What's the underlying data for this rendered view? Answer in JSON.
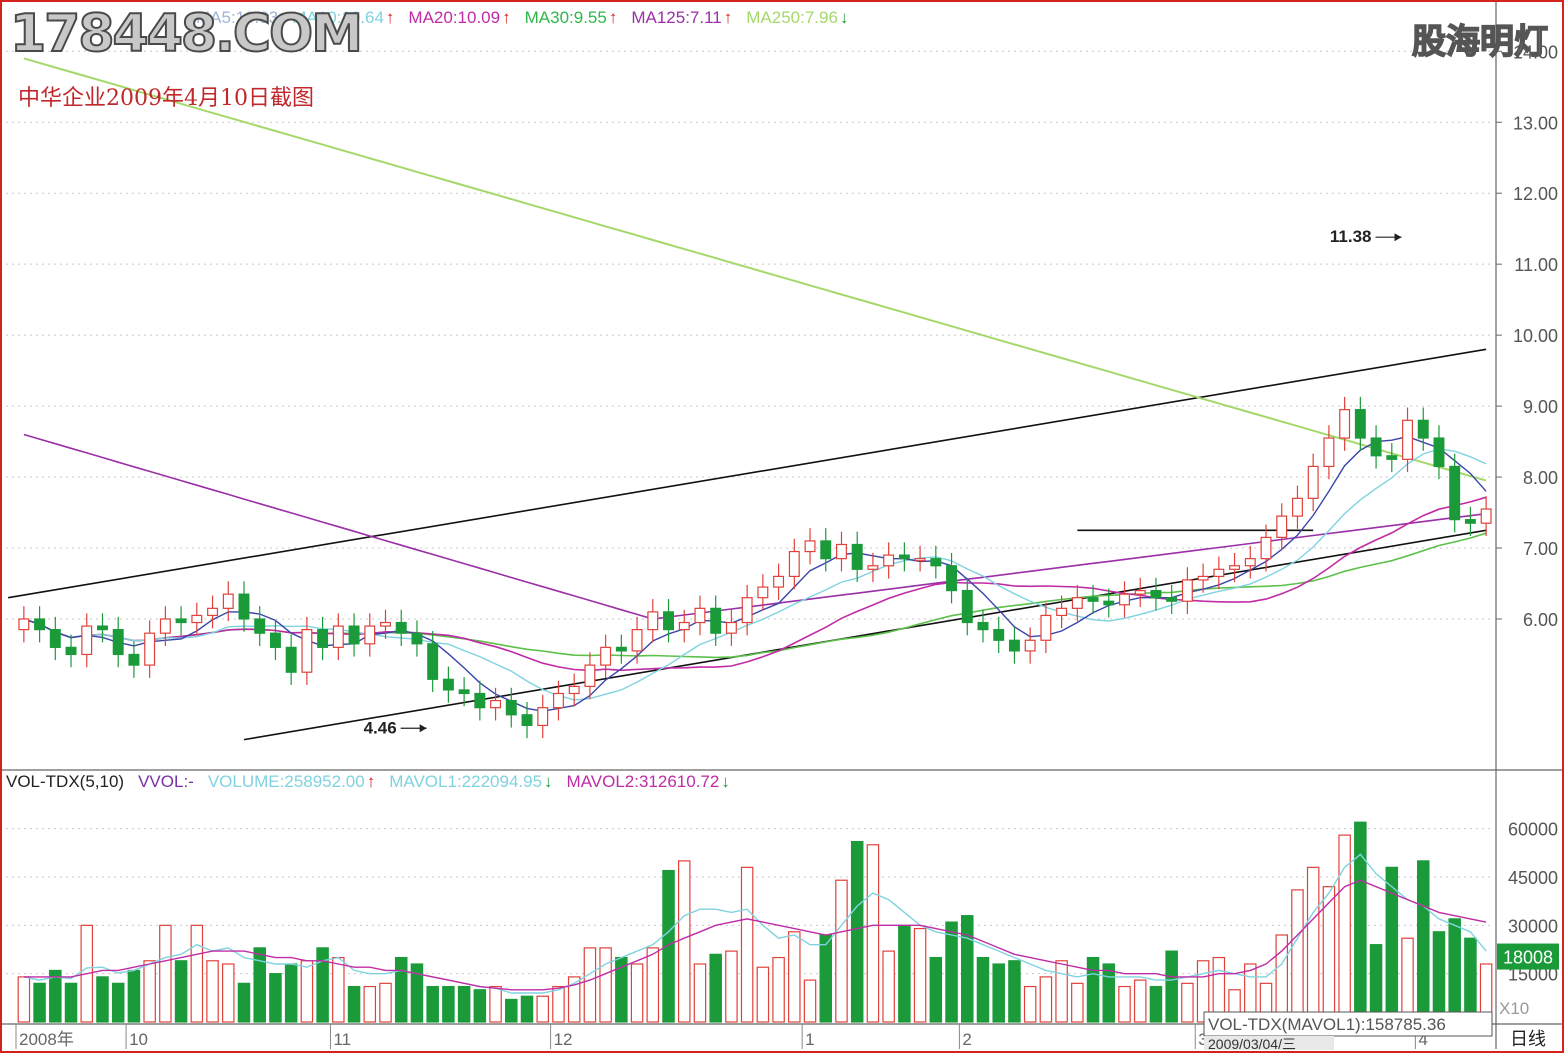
{
  "watermark": "178448.COM",
  "brand": "股海明灯",
  "caption": "中华企业2009年4月10日截图",
  "ma_legend": [
    {
      "label": "MA5:10.83",
      "color": "#9fb4d6",
      "arrow": ""
    },
    {
      "label": "MA10:10.64",
      "color": "#7fd3e0",
      "arrow": "↑"
    },
    {
      "label": "MA20:10.09",
      "color": "#c02ca6",
      "arrow": "↑"
    },
    {
      "label": "MA30:9.55",
      "color": "#2fb84a",
      "arrow": "↑"
    },
    {
      "label": "MA125:7.11",
      "color": "#9a2fa8",
      "arrow": "↑"
    },
    {
      "label": "MA250:7.96",
      "color": "#a5d86a",
      "arrow": "↓"
    }
  ],
  "vol_legend": [
    {
      "label": "VOL-TDX(5,10)",
      "color": "#222222",
      "arrow": ""
    },
    {
      "label": "VVOL:-",
      "color": "#7a2fa8",
      "arrow": ""
    },
    {
      "label": "VOLUME:258952.00",
      "color": "#7fd3e0",
      "arrow": "↑"
    },
    {
      "label": "MAVOL1:222094.95",
      "color": "#7fd3e0",
      "arrow": "↓"
    },
    {
      "label": "MAVOL2:312610.72",
      "color": "#c02ca6",
      "arrow": "↓"
    }
  ],
  "vol_status": "VOL-TDX(MAVOL1):158785.36",
  "vol_current": "18008",
  "vol_unit": "X10",
  "period_label": "日线",
  "date_label": "2009/03/04/三",
  "colors": {
    "up": "#e0413a",
    "down": "#1b9a3a",
    "frame": "#d4221c",
    "grid": "#c8c8c8",
    "ma5": "#3a45a8",
    "ma10": "#7fd3e0",
    "ma20": "#c02ca6",
    "ma30": "#5cc04a",
    "ma125": "#9a2fa8",
    "ma250": "#a5d86a"
  },
  "chart_data": [
    {
      "type": "candlestick",
      "y_ticks": [
        "14.00",
        "13.00",
        "12.00",
        "11.00",
        "10.00",
        "9.00",
        "8.00",
        "7.00",
        "6.00"
      ],
      "y_tick_values": [
        14,
        13,
        12,
        11,
        10,
        9,
        8,
        7,
        6
      ],
      "ylim": [
        3.9,
        14.3
      ],
      "x_ticks": [
        {
          "label": "2008年",
          "i": 0
        },
        {
          "label": "10",
          "i": 7
        },
        {
          "label": "11",
          "i": 20
        },
        {
          "label": "12",
          "i": 34
        },
        {
          "label": "1",
          "i": 50
        },
        {
          "label": "2",
          "i": 60
        },
        {
          "label": "3",
          "i": 75
        },
        {
          "label": "4",
          "i": 89
        }
      ],
      "n": 94,
      "close": [
        6.0,
        5.85,
        5.6,
        5.5,
        5.9,
        5.85,
        5.5,
        5.35,
        5.8,
        6.0,
        5.95,
        6.05,
        6.15,
        6.35,
        6.0,
        5.8,
        5.6,
        5.25,
        5.85,
        5.6,
        5.9,
        5.65,
        5.9,
        5.95,
        5.8,
        5.65,
        5.15,
        5.0,
        4.95,
        4.75,
        4.85,
        4.65,
        4.5,
        4.75,
        4.95,
        5.05,
        5.35,
        5.6,
        5.55,
        5.85,
        6.1,
        5.85,
        5.95,
        6.15,
        5.8,
        5.95,
        6.3,
        6.45,
        6.6,
        6.95,
        7.1,
        6.85,
        7.05,
        6.7,
        6.75,
        6.9,
        6.85,
        6.85,
        6.75,
        6.4,
        5.95,
        5.85,
        5.7,
        5.55,
        5.7,
        6.05,
        6.15,
        6.3,
        6.25,
        6.2,
        6.35,
        6.4,
        6.3,
        6.25,
        6.55,
        6.6,
        6.7,
        6.75,
        6.85,
        7.15,
        7.45,
        7.7,
        8.15,
        8.55,
        8.95,
        8.55,
        8.3,
        8.25,
        8.8,
        8.55,
        8.15,
        7.4,
        7.35,
        7.55
      ],
      "open": [
        5.85,
        6.0,
        5.85,
        5.6,
        5.5,
        5.9,
        5.85,
        5.5,
        5.35,
        5.8,
        6.0,
        5.95,
        6.05,
        6.15,
        6.35,
        6.0,
        5.8,
        5.6,
        5.25,
        5.85,
        5.6,
        5.9,
        5.65,
        5.9,
        5.95,
        5.8,
        5.65,
        5.15,
        5.0,
        4.95,
        4.75,
        4.85,
        4.65,
        4.5,
        4.75,
        4.95,
        5.05,
        5.35,
        5.6,
        5.55,
        5.85,
        6.1,
        5.85,
        5.95,
        6.15,
        5.8,
        5.95,
        6.3,
        6.45,
        6.6,
        6.95,
        7.1,
        6.85,
        7.05,
        6.7,
        6.75,
        6.9,
        6.85,
        6.85,
        6.75,
        6.4,
        5.95,
        5.85,
        5.7,
        5.55,
        5.7,
        6.05,
        6.15,
        6.3,
        6.25,
        6.2,
        6.35,
        6.4,
        6.3,
        6.25,
        6.55,
        6.6,
        6.7,
        6.75,
        6.85,
        7.15,
        7.45,
        7.7,
        8.15,
        8.55,
        8.95,
        8.55,
        8.3,
        8.25,
        8.8,
        8.55,
        8.15,
        7.4,
        7.35
      ],
      "price_notes": [
        {
          "text": "11.38",
          "price": 11.38,
          "i": 88
        },
        {
          "text": "4.46",
          "price": 4.46,
          "i": 26
        }
      ]
    },
    {
      "type": "bar",
      "y_ticks": [
        "60000",
        "45000",
        "30000",
        "15000"
      ],
      "y_tick_values": [
        60000,
        45000,
        30000,
        15000
      ],
      "ylim": [
        0,
        72000
      ],
      "volume": [
        14000,
        12000,
        16000,
        12000,
        30000,
        14000,
        12000,
        16000,
        19000,
        30000,
        19000,
        30000,
        19000,
        18000,
        12000,
        23000,
        15000,
        18000,
        19000,
        23000,
        20000,
        11000,
        11000,
        12000,
        20000,
        18000,
        11000,
        11000,
        11000,
        10000,
        11000,
        7000,
        8000,
        8000,
        11000,
        14000,
        23000,
        23000,
        20000,
        18000,
        23000,
        47000,
        50000,
        18000,
        21000,
        22000,
        48000,
        17000,
        20000,
        28000,
        13000,
        27000,
        44000,
        56000,
        55000,
        22000,
        30000,
        29000,
        20000,
        31000,
        33000,
        20000,
        18000,
        19000,
        11000,
        14000,
        19000,
        12000,
        20000,
        18000,
        11000,
        13000,
        11000,
        22000,
        12000,
        19000,
        20000,
        10000,
        18000,
        12000,
        27000,
        41000,
        48000,
        42000,
        58000,
        62000,
        24000,
        48000,
        26000,
        50000,
        28000,
        32000,
        26000,
        18008
      ],
      "ma5": [
        14000,
        13000,
        14000,
        13500,
        16800,
        17000,
        15200,
        16000,
        18000,
        20000,
        21000,
        24000,
        22000,
        23000,
        20000,
        19000,
        18000,
        18000,
        17000,
        19000,
        20000,
        16000,
        15000,
        15000,
        16000,
        15000,
        14000,
        13000,
        12000,
        11000,
        10500,
        9000,
        9000,
        9000,
        10000,
        12000,
        15000,
        18000,
        20000,
        22000,
        24000,
        28000,
        33000,
        35000,
        35000,
        34000,
        35000,
        30000,
        26000,
        27000,
        24000,
        24000,
        30000,
        36000,
        40000,
        38000,
        34000,
        30000,
        28000,
        27000,
        26000,
        24000,
        22000,
        20000,
        18000,
        16000,
        15000,
        14000,
        15000,
        14000,
        14000,
        14000,
        13000,
        13000,
        14000,
        15000,
        16000,
        15000,
        14000,
        14000,
        18000,
        26000,
        34000,
        40000,
        48000,
        52000,
        46000,
        42000,
        38000,
        36000,
        32000,
        30000,
        28000,
        22000
      ],
      "ma10": [
        14000,
        14000,
        14000,
        14000,
        15000,
        16000,
        16000,
        17000,
        18000,
        19000,
        20000,
        21000,
        22000,
        22000,
        22000,
        21000,
        20000,
        20000,
        19000,
        19000,
        18000,
        17000,
        17000,
        16000,
        16000,
        15000,
        14000,
        13000,
        12000,
        11000,
        10500,
        10000,
        10000,
        10000,
        10500,
        11500,
        13000,
        15000,
        17000,
        19000,
        21000,
        24000,
        26000,
        28000,
        30000,
        31000,
        32000,
        31000,
        30000,
        29000,
        28000,
        27000,
        28000,
        29000,
        30000,
        30000,
        30000,
        30000,
        29000,
        28000,
        27000,
        25000,
        23000,
        21000,
        20000,
        19000,
        18000,
        17000,
        16000,
        16000,
        15000,
        15000,
        15000,
        14000,
        14000,
        14000,
        15000,
        15000,
        16000,
        18000,
        22000,
        27000,
        32000,
        37000,
        42000,
        44000,
        42000,
        40000,
        38000,
        36000,
        34000,
        33000,
        32000,
        31000
      ]
    }
  ]
}
